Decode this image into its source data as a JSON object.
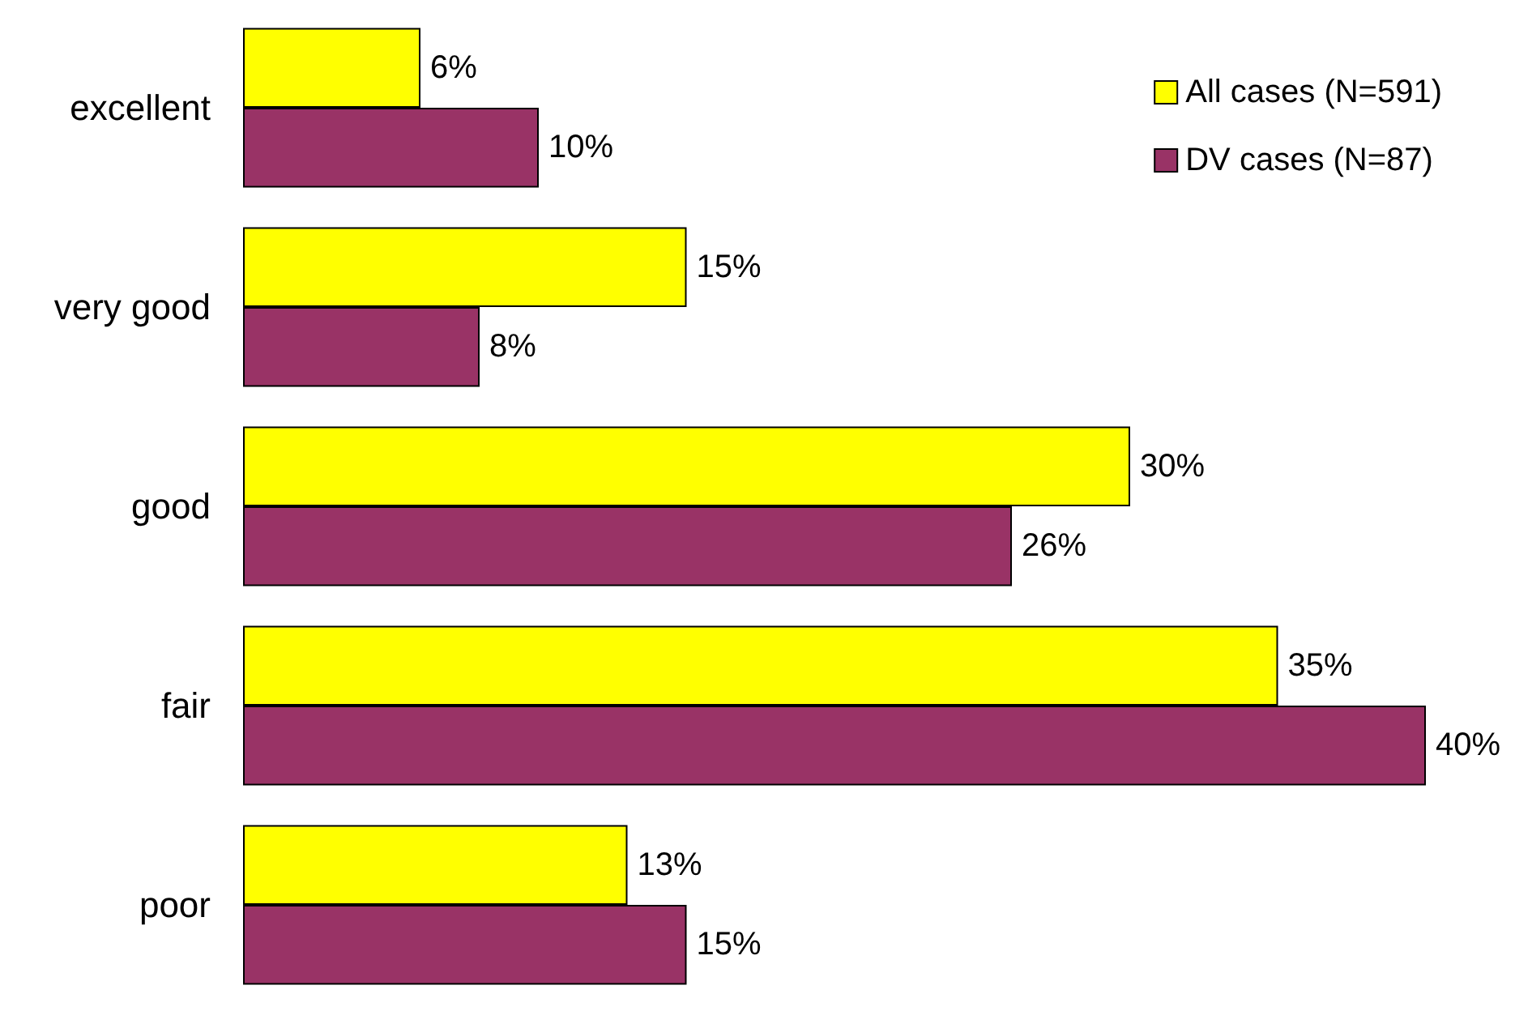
{
  "chart_data": {
    "type": "bar",
    "orientation": "horizontal",
    "categories": [
      "excellent",
      "very good",
      "good",
      "fair",
      "poor"
    ],
    "series": [
      {
        "name": "All cases (N=591)",
        "color": "#ffff00",
        "values": [
          6,
          15,
          30,
          35,
          13
        ],
        "value_labels": [
          "6%",
          "15%",
          "30%",
          "35%",
          "13%"
        ]
      },
      {
        "name": "DV cases (N=87)",
        "color": "#993366",
        "values": [
          10,
          8,
          26,
          40,
          15
        ],
        "value_labels": [
          "10%",
          "8%",
          "26%",
          "40%",
          "15%"
        ]
      }
    ],
    "legend": "top right",
    "grid": false
  }
}
